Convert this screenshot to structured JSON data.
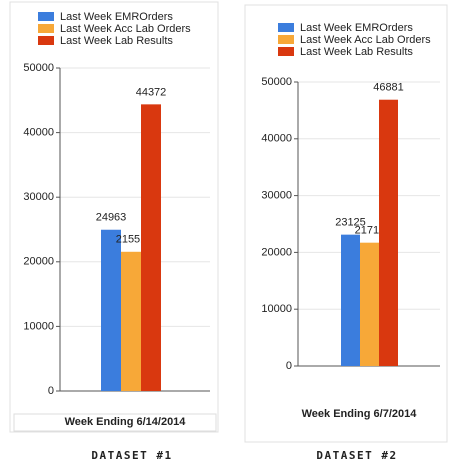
{
  "chart_data": [
    {
      "type": "bar",
      "categories": [
        null
      ],
      "xlabel": "Week Ending 6/14/2014",
      "caption": "DATASET #1",
      "series": [
        {
          "name": "Last Week EMROrders",
          "color": "#3b7ddd",
          "values": [
            24963
          ]
        },
        {
          "name": "Last Week Acc Lab Orders",
          "color": "#f7a838",
          "values": [
            21551
          ]
        },
        {
          "name": "Last Week Lab Results",
          "color": "#d9380f",
          "values": [
            44372
          ]
        }
      ],
      "ylim": [
        0,
        50000
      ],
      "yticks": [
        0,
        10000,
        20000,
        30000,
        40000,
        50000
      ],
      "grid": true
    },
    {
      "type": "bar",
      "categories": [
        null
      ],
      "xlabel": "Week Ending 6/7/2014",
      "caption": "DATASET #2",
      "series": [
        {
          "name": "Last Week EMROrders",
          "color": "#3b7ddd",
          "values": [
            23125
          ]
        },
        {
          "name": "Last Week Acc Lab Orders",
          "color": "#f7a838",
          "values": [
            21711
          ]
        },
        {
          "name": "Last Week Lab Results",
          "color": "#d9380f",
          "values": [
            46881
          ]
        }
      ],
      "ylim": [
        0,
        50000
      ],
      "yticks": [
        0,
        10000,
        20000,
        30000,
        40000,
        50000
      ],
      "grid": true
    }
  ]
}
